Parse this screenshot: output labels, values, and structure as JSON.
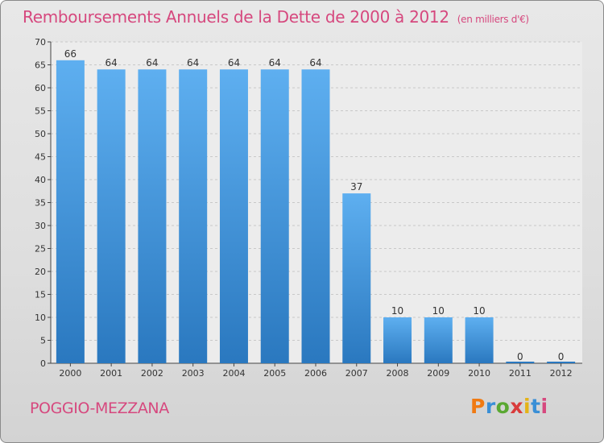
{
  "title": "Remboursements Annuels de la Dette de 2000 à 2012",
  "unit_note": "(en milliers d'€)",
  "commune": "POGGIO-MEZZANA",
  "logo_text": "Proxiti",
  "colors": {
    "title": "#d6487e",
    "bar_light": "#5eaff0",
    "bar_dark": "#2a78bf",
    "axis": "#444444",
    "grid": "#c8c8c8"
  },
  "chart_data": {
    "type": "bar",
    "title": "Remboursements Annuels de la Dette de 2000 à 2012",
    "xlabel": "",
    "ylabel": "",
    "categories": [
      "2000",
      "2001",
      "2002",
      "2003",
      "2004",
      "2005",
      "2006",
      "2007",
      "2008",
      "2009",
      "2010",
      "2011",
      "2012"
    ],
    "values": [
      66,
      64,
      64,
      64,
      64,
      64,
      64,
      37,
      10,
      10,
      10,
      0,
      0
    ],
    "ylim": [
      0,
      70
    ],
    "yticks": [
      0,
      5,
      10,
      15,
      20,
      25,
      30,
      35,
      40,
      45,
      50,
      55,
      60,
      65,
      70
    ],
    "grid": true
  }
}
